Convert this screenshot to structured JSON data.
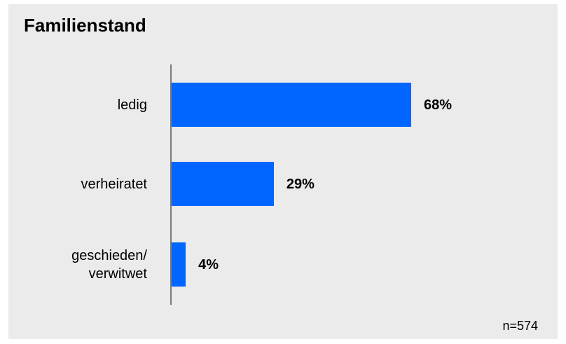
{
  "chart_data": {
    "type": "bar",
    "orientation": "horizontal",
    "title": "Familienstand",
    "categories": [
      "ledig",
      "verheiratet",
      "geschieden/\nverwitwet"
    ],
    "values": [
      68,
      29,
      4
    ],
    "value_labels": [
      "68%",
      "29%",
      "4%"
    ],
    "unit": "%",
    "xlim": [
      0,
      100
    ],
    "grid": false,
    "legend": "none",
    "note": "n=574",
    "colors": {
      "bar": "#0066ff",
      "background": "#ebebeb",
      "axis": "#7a7a7a"
    }
  }
}
